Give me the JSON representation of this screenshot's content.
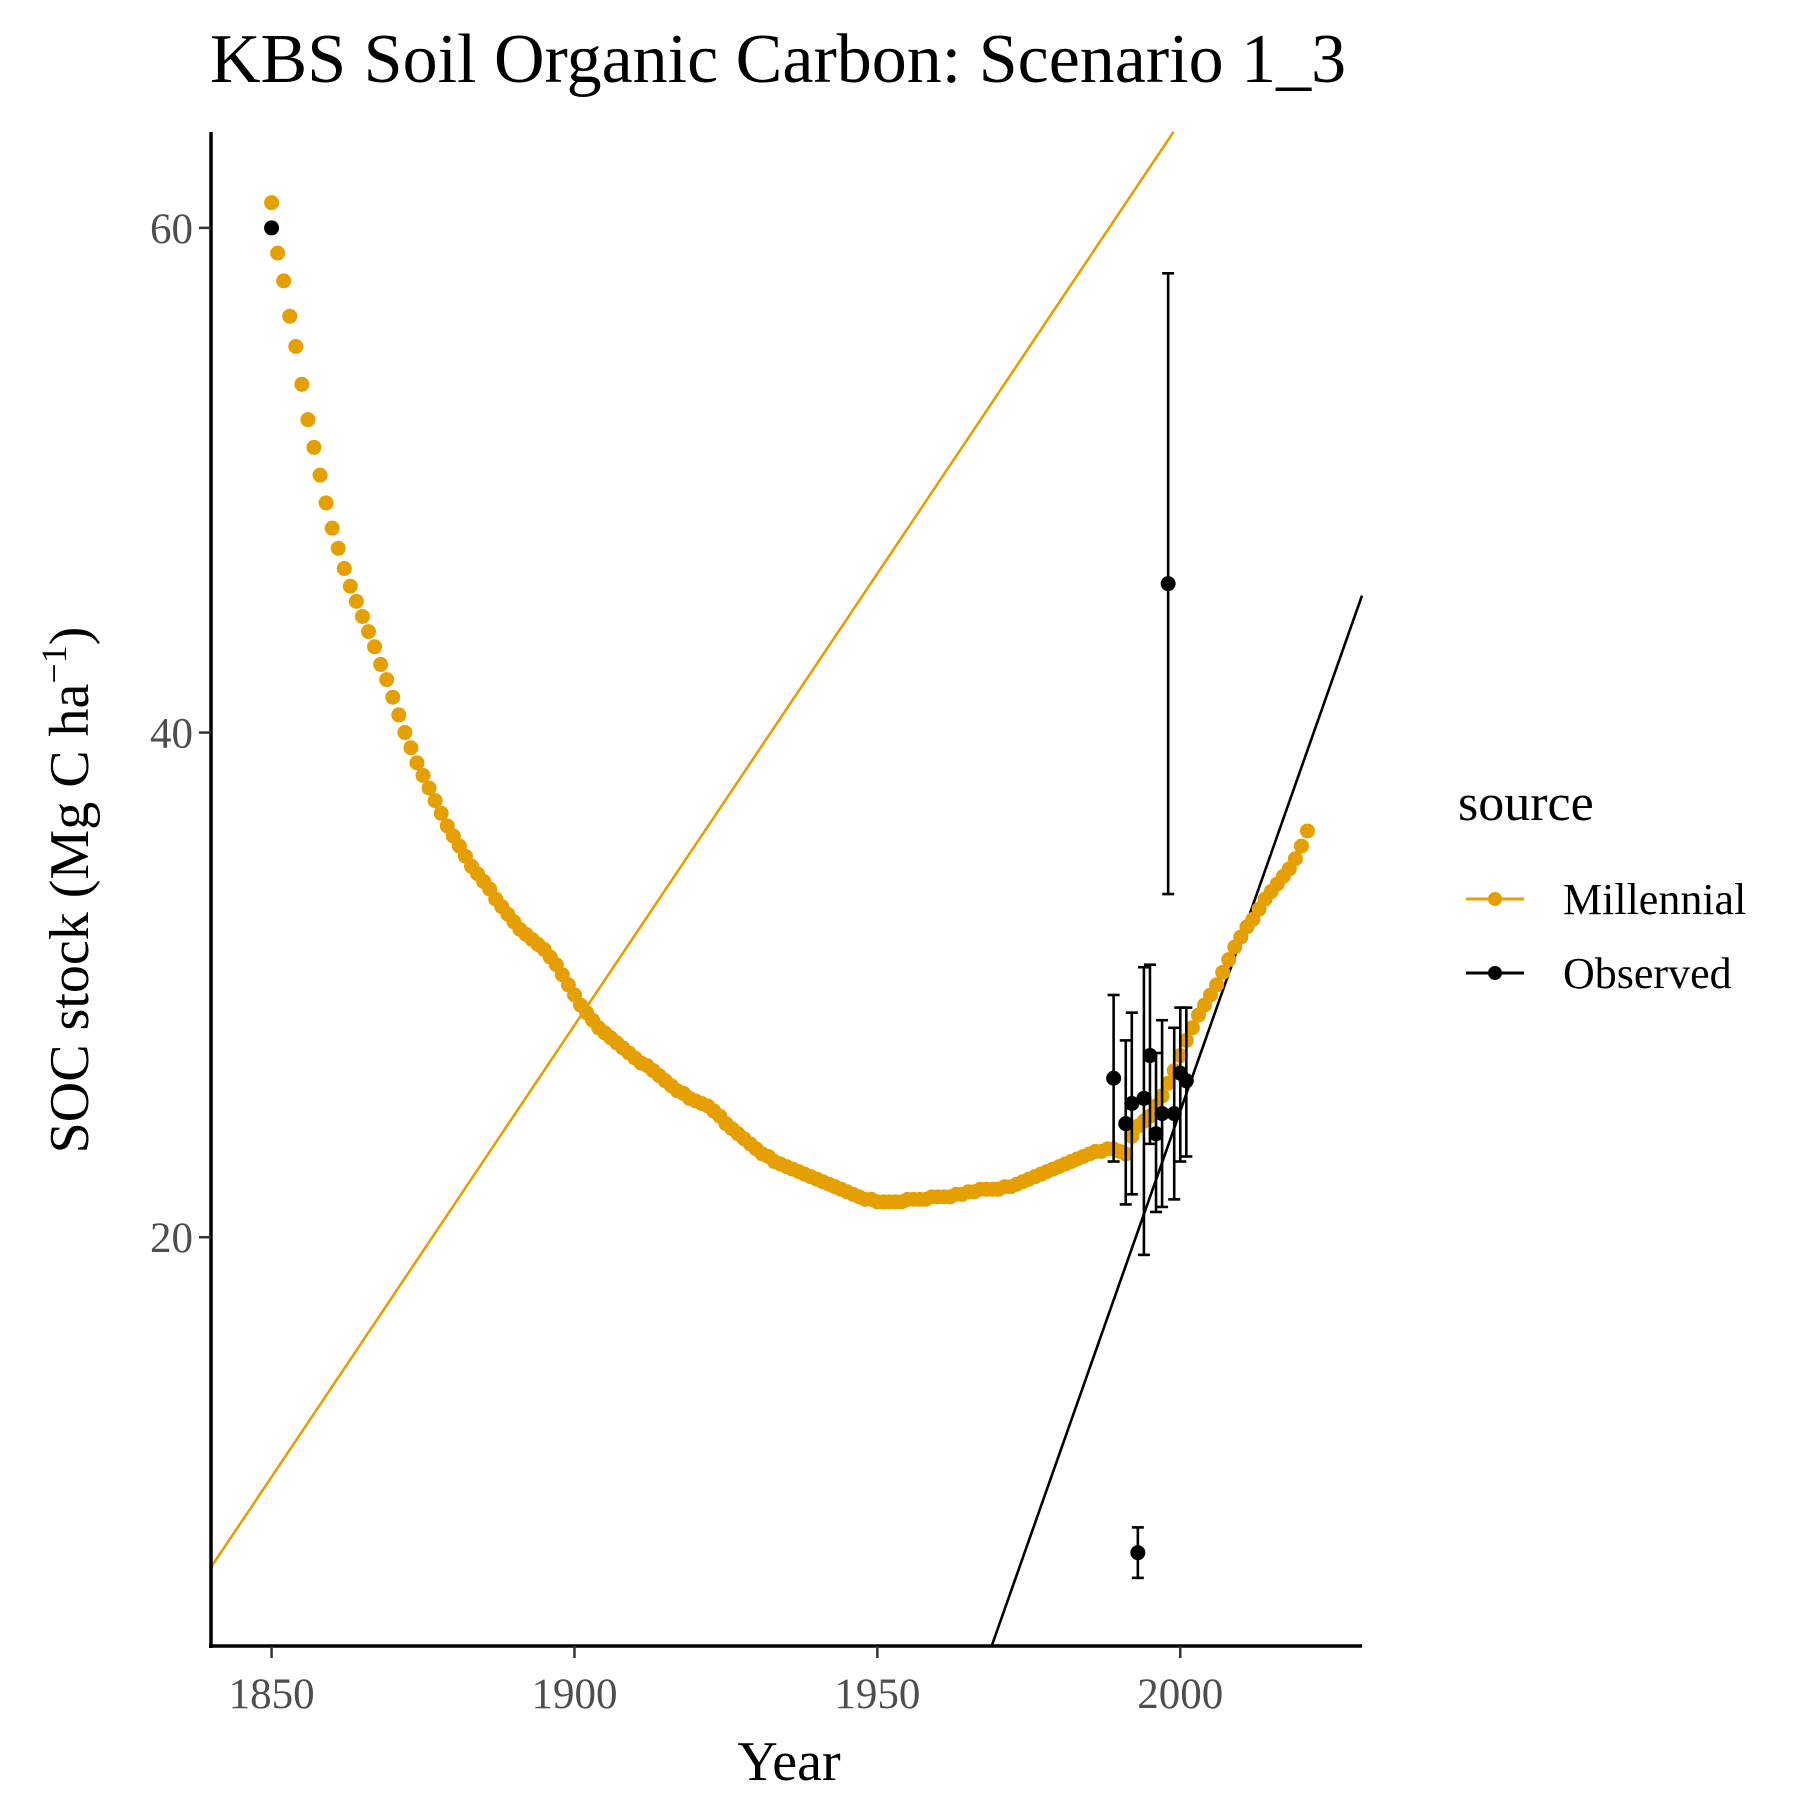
{
  "chart_data": {
    "type": "scatter",
    "title": "KBS Soil Organic Carbon: Scenario  1_3",
    "xlabel": "Year",
    "ylabel": "SOC stock (Mg C ha⁻¹)",
    "ylabel_main": "SOC stock (Mg C ha",
    "ylabel_sup": "−1",
    "ylabel_close": ")",
    "xlim": [
      1840,
      2030
    ],
    "ylim": [
      3.8,
      63.8
    ],
    "x_ticks": [
      1850,
      1900,
      1950,
      2000
    ],
    "y_ticks": [
      20,
      40,
      60
    ],
    "grid": false,
    "legend": {
      "title": "source",
      "position": "right",
      "entries": [
        {
          "label": "Millennial",
          "color": "#E69F00"
        },
        {
          "label": "Observed",
          "color": "#000000"
        }
      ]
    },
    "series": [
      {
        "name": "Millennial",
        "color": "#E69F00",
        "points": [
          [
            1850,
            61.0
          ],
          [
            1851,
            59.0
          ],
          [
            1852,
            57.9
          ],
          [
            1853,
            56.5
          ],
          [
            1854,
            55.3
          ],
          [
            1855,
            53.8
          ],
          [
            1856,
            52.4
          ],
          [
            1857,
            51.3
          ],
          [
            1858,
            50.2
          ],
          [
            1859,
            49.1
          ],
          [
            1860,
            48.1
          ],
          [
            1861,
            47.3
          ],
          [
            1862,
            46.5
          ],
          [
            1863,
            45.8
          ],
          [
            1864,
            45.2
          ],
          [
            1865,
            44.6
          ],
          [
            1866,
            44.0
          ],
          [
            1867,
            43.4
          ],
          [
            1868,
            42.7
          ],
          [
            1869,
            42.1
          ],
          [
            1870,
            41.4
          ],
          [
            1871,
            40.7
          ],
          [
            1872,
            40.0
          ],
          [
            1873,
            39.4
          ],
          [
            1874,
            38.8
          ],
          [
            1875,
            38.3
          ],
          [
            1876,
            37.8
          ],
          [
            1877,
            37.3
          ],
          [
            1878,
            36.8
          ],
          [
            1879,
            36.3
          ],
          [
            1880,
            35.9
          ],
          [
            1881,
            35.5
          ],
          [
            1882,
            35.1
          ],
          [
            1883,
            34.7
          ],
          [
            1884,
            34.4
          ],
          [
            1885,
            34.1
          ],
          [
            1886,
            33.8
          ],
          [
            1887,
            33.4
          ],
          [
            1888,
            33.1
          ],
          [
            1889,
            32.8
          ],
          [
            1890,
            32.5
          ],
          [
            1891,
            32.2
          ],
          [
            1892,
            32.0
          ],
          [
            1893,
            31.8
          ],
          [
            1894,
            31.6
          ],
          [
            1895,
            31.4
          ],
          [
            1896,
            31.1
          ],
          [
            1897,
            30.8
          ],
          [
            1898,
            30.4
          ],
          [
            1899,
            30.0
          ],
          [
            1900,
            29.6
          ],
          [
            1901,
            29.2
          ],
          [
            1902,
            28.9
          ],
          [
            1903,
            28.6
          ],
          [
            1904,
            28.3
          ],
          [
            1905,
            28.1
          ],
          [
            1906,
            27.9
          ],
          [
            1907,
            27.7
          ],
          [
            1908,
            27.5
          ],
          [
            1909,
            27.3
          ],
          [
            1910,
            27.1
          ],
          [
            1911,
            26.9
          ],
          [
            1912,
            26.8
          ],
          [
            1913,
            26.6
          ],
          [
            1914,
            26.4
          ],
          [
            1915,
            26.2
          ],
          [
            1916,
            26.0
          ],
          [
            1917,
            25.8
          ],
          [
            1918,
            25.7
          ],
          [
            1919,
            25.5
          ],
          [
            1920,
            25.4
          ],
          [
            1921,
            25.3
          ],
          [
            1922,
            25.2
          ],
          [
            1923,
            25.0
          ],
          [
            1924,
            24.8
          ],
          [
            1925,
            24.5
          ],
          [
            1926,
            24.3
          ],
          [
            1927,
            24.1
          ],
          [
            1928,
            23.9
          ],
          [
            1929,
            23.7
          ],
          [
            1930,
            23.5
          ],
          [
            1931,
            23.3
          ],
          [
            1932,
            23.2
          ],
          [
            1933,
            23.0
          ],
          [
            1934,
            22.9
          ],
          [
            1935,
            22.8
          ],
          [
            1936,
            22.7
          ],
          [
            1937,
            22.6
          ],
          [
            1938,
            22.5
          ],
          [
            1939,
            22.4
          ],
          [
            1940,
            22.3
          ],
          [
            1941,
            22.2
          ],
          [
            1942,
            22.1
          ],
          [
            1943,
            22.0
          ],
          [
            1944,
            21.9
          ],
          [
            1945,
            21.8
          ],
          [
            1946,
            21.7
          ],
          [
            1947,
            21.6
          ],
          [
            1948,
            21.5
          ],
          [
            1949,
            21.5
          ],
          [
            1950,
            21.4
          ],
          [
            1951,
            21.4
          ],
          [
            1952,
            21.4
          ],
          [
            1953,
            21.4
          ],
          [
            1954,
            21.4
          ],
          [
            1955,
            21.5
          ],
          [
            1956,
            21.5
          ],
          [
            1957,
            21.5
          ],
          [
            1958,
            21.5
          ],
          [
            1959,
            21.6
          ],
          [
            1960,
            21.6
          ],
          [
            1961,
            21.6
          ],
          [
            1962,
            21.6
          ],
          [
            1963,
            21.7
          ],
          [
            1964,
            21.7
          ],
          [
            1965,
            21.8
          ],
          [
            1966,
            21.8
          ],
          [
            1967,
            21.9
          ],
          [
            1968,
            21.9
          ],
          [
            1969,
            21.9
          ],
          [
            1970,
            21.9
          ],
          [
            1971,
            22.0
          ],
          [
            1972,
            22.0
          ],
          [
            1973,
            22.1
          ],
          [
            1974,
            22.2
          ],
          [
            1975,
            22.3
          ],
          [
            1976,
            22.4
          ],
          [
            1977,
            22.5
          ],
          [
            1978,
            22.6
          ],
          [
            1979,
            22.7
          ],
          [
            1980,
            22.8
          ],
          [
            1981,
            22.9
          ],
          [
            1982,
            23.0
          ],
          [
            1983,
            23.1
          ],
          [
            1984,
            23.2
          ],
          [
            1985,
            23.3
          ],
          [
            1986,
            23.4
          ],
          [
            1987,
            23.4
          ],
          [
            1988,
            23.5
          ],
          [
            1989,
            23.5
          ],
          [
            1990,
            23.4
          ],
          [
            1991,
            23.3
          ],
          [
            1992,
            24.0
          ],
          [
            1993,
            24.4
          ],
          [
            1994,
            24.6
          ],
          [
            1995,
            24.8
          ],
          [
            1996,
            25.2
          ],
          [
            1997,
            25.6
          ],
          [
            1998,
            26.1
          ],
          [
            1999,
            26.6
          ],
          [
            2000,
            27.2
          ],
          [
            2001,
            27.8
          ],
          [
            2002,
            28.3
          ],
          [
            2003,
            28.8
          ],
          [
            2004,
            29.2
          ],
          [
            2005,
            29.6
          ],
          [
            2006,
            30.0
          ],
          [
            2007,
            30.5
          ],
          [
            2008,
            31.0
          ],
          [
            2009,
            31.5
          ],
          [
            2010,
            31.9
          ],
          [
            2011,
            32.3
          ],
          [
            2012,
            32.6
          ],
          [
            2013,
            33.0
          ],
          [
            2014,
            33.4
          ],
          [
            2015,
            33.7
          ],
          [
            2016,
            34.0
          ],
          [
            2017,
            34.3
          ],
          [
            2018,
            34.6
          ],
          [
            2019,
            35.0
          ],
          [
            2020,
            35.5
          ],
          [
            2021,
            36.1
          ]
        ],
        "trend": {
          "slope": 0.358,
          "intercept": -651.8
        }
      },
      {
        "name": "Observed",
        "color": "#000000",
        "points": [
          {
            "x": 1850,
            "y": 60.0
          },
          {
            "x": 1989,
            "y": 26.3,
            "ymin": 23.0,
            "ymax": 29.6
          },
          {
            "x": 1991,
            "y": 24.5,
            "ymin": 21.3,
            "ymax": 27.8
          },
          {
            "x": 1992,
            "y": 25.3,
            "ymin": 21.7,
            "ymax": 28.9
          },
          {
            "x": 1993,
            "y": 7.5,
            "ymin": 6.5,
            "ymax": 8.5
          },
          {
            "x": 1994,
            "y": 25.5,
            "ymin": 19.3,
            "ymax": 30.7
          },
          {
            "x": 1995,
            "y": 27.2,
            "ymin": 23.7,
            "ymax": 30.8
          },
          {
            "x": 1996,
            "y": 24.1,
            "ymin": 21.0,
            "ymax": 27.3
          },
          {
            "x": 1997,
            "y": 24.9,
            "ymin": 21.2,
            "ymax": 28.6
          },
          {
            "x": 1998,
            "y": 45.9,
            "ymin": 33.6,
            "ymax": 58.2
          },
          {
            "x": 1999,
            "y": 24.9,
            "ymin": 21.5,
            "ymax": 28.3
          },
          {
            "x": 2000,
            "y": 26.5,
            "ymin": 23.0,
            "ymax": 29.1
          },
          {
            "x": 2001,
            "y": 26.2,
            "ymin": 23.2,
            "ymax": 29.1
          }
        ],
        "trend": {
          "slope": 0.681,
          "intercept": -1337.0
        }
      }
    ]
  }
}
